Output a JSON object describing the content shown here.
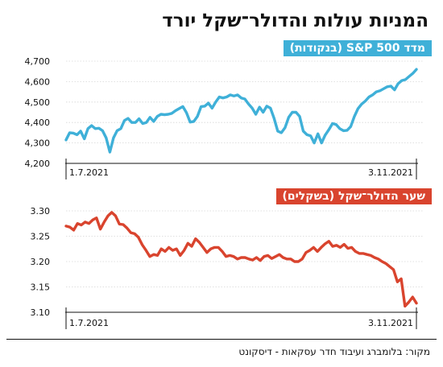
{
  "title": "המניות עולות והדולר־שקל יורד",
  "source": "מקור: בלומברג ועיבוד חדר עסקאות - דיסקונט",
  "chart_data": [
    {
      "type": "line",
      "title": "מדד S&P 500 (בנקודות)",
      "color": "#3fb0d8",
      "ylim": [
        4200,
        4700
      ],
      "yticks": [
        "4,200",
        "4,300",
        "4,400",
        "4,500",
        "4,600",
        "4,700"
      ],
      "ytick_values": [
        4200,
        4300,
        4400,
        4500,
        4600,
        4700
      ],
      "x_start_label": "1.7.2021",
      "x_end_label": "3.11.2021",
      "grid": true,
      "values": [
        4315,
        4350,
        4348,
        4340,
        4358,
        4320,
        4370,
        4385,
        4370,
        4372,
        4360,
        4325,
        4255,
        4325,
        4360,
        4370,
        4410,
        4420,
        4400,
        4400,
        4418,
        4395,
        4400,
        4425,
        4405,
        4430,
        4440,
        4438,
        4440,
        4445,
        4458,
        4468,
        4478,
        4448,
        4402,
        4405,
        4430,
        4478,
        4480,
        4495,
        4470,
        4500,
        4525,
        4520,
        4525,
        4535,
        4530,
        4535,
        4520,
        4515,
        4490,
        4470,
        4440,
        4475,
        4450,
        4480,
        4470,
        4420,
        4358,
        4350,
        4375,
        4425,
        4450,
        4450,
        4430,
        4358,
        4340,
        4335,
        4300,
        4345,
        4300,
        4338,
        4365,
        4395,
        4390,
        4370,
        4360,
        4362,
        4380,
        4430,
        4468,
        4490,
        4505,
        4525,
        4535,
        4550,
        4555,
        4565,
        4575,
        4578,
        4560,
        4590,
        4605,
        4610,
        4625,
        4640,
        4660
      ]
    },
    {
      "type": "line",
      "title": "שער הדולר־שקל (בשקלים)",
      "color": "#d9442e",
      "ylim": [
        3.1,
        3.3
      ],
      "yticks": [
        "3.10",
        "3.15",
        "3.20",
        "3.25",
        "3.30"
      ],
      "ytick_values": [
        3.1,
        3.15,
        3.2,
        3.25,
        3.3
      ],
      "x_start_label": "1.7.2021",
      "x_end_label": "3.11.2021",
      "grid": true,
      "values": [
        3.27,
        3.268,
        3.262,
        3.275,
        3.272,
        3.278,
        3.275,
        3.282,
        3.286,
        3.264,
        3.278,
        3.29,
        3.297,
        3.29,
        3.274,
        3.273,
        3.266,
        3.257,
        3.255,
        3.248,
        3.233,
        3.222,
        3.21,
        3.214,
        3.212,
        3.225,
        3.22,
        3.228,
        3.222,
        3.225,
        3.212,
        3.222,
        3.236,
        3.23,
        3.245,
        3.238,
        3.228,
        3.218,
        3.225,
        3.228,
        3.228,
        3.22,
        3.21,
        3.212,
        3.21,
        3.205,
        3.208,
        3.208,
        3.205,
        3.203,
        3.208,
        3.202,
        3.21,
        3.212,
        3.206,
        3.21,
        3.214,
        3.208,
        3.205,
        3.205,
        3.2,
        3.2,
        3.205,
        3.218,
        3.222,
        3.228,
        3.22,
        3.228,
        3.235,
        3.24,
        3.23,
        3.232,
        3.228,
        3.234,
        3.226,
        3.228,
        3.22,
        3.216,
        3.216,
        3.214,
        3.212,
        3.208,
        3.205,
        3.2,
        3.196,
        3.19,
        3.184,
        3.16,
        3.166,
        3.112,
        3.12,
        3.13,
        3.118
      ]
    }
  ]
}
